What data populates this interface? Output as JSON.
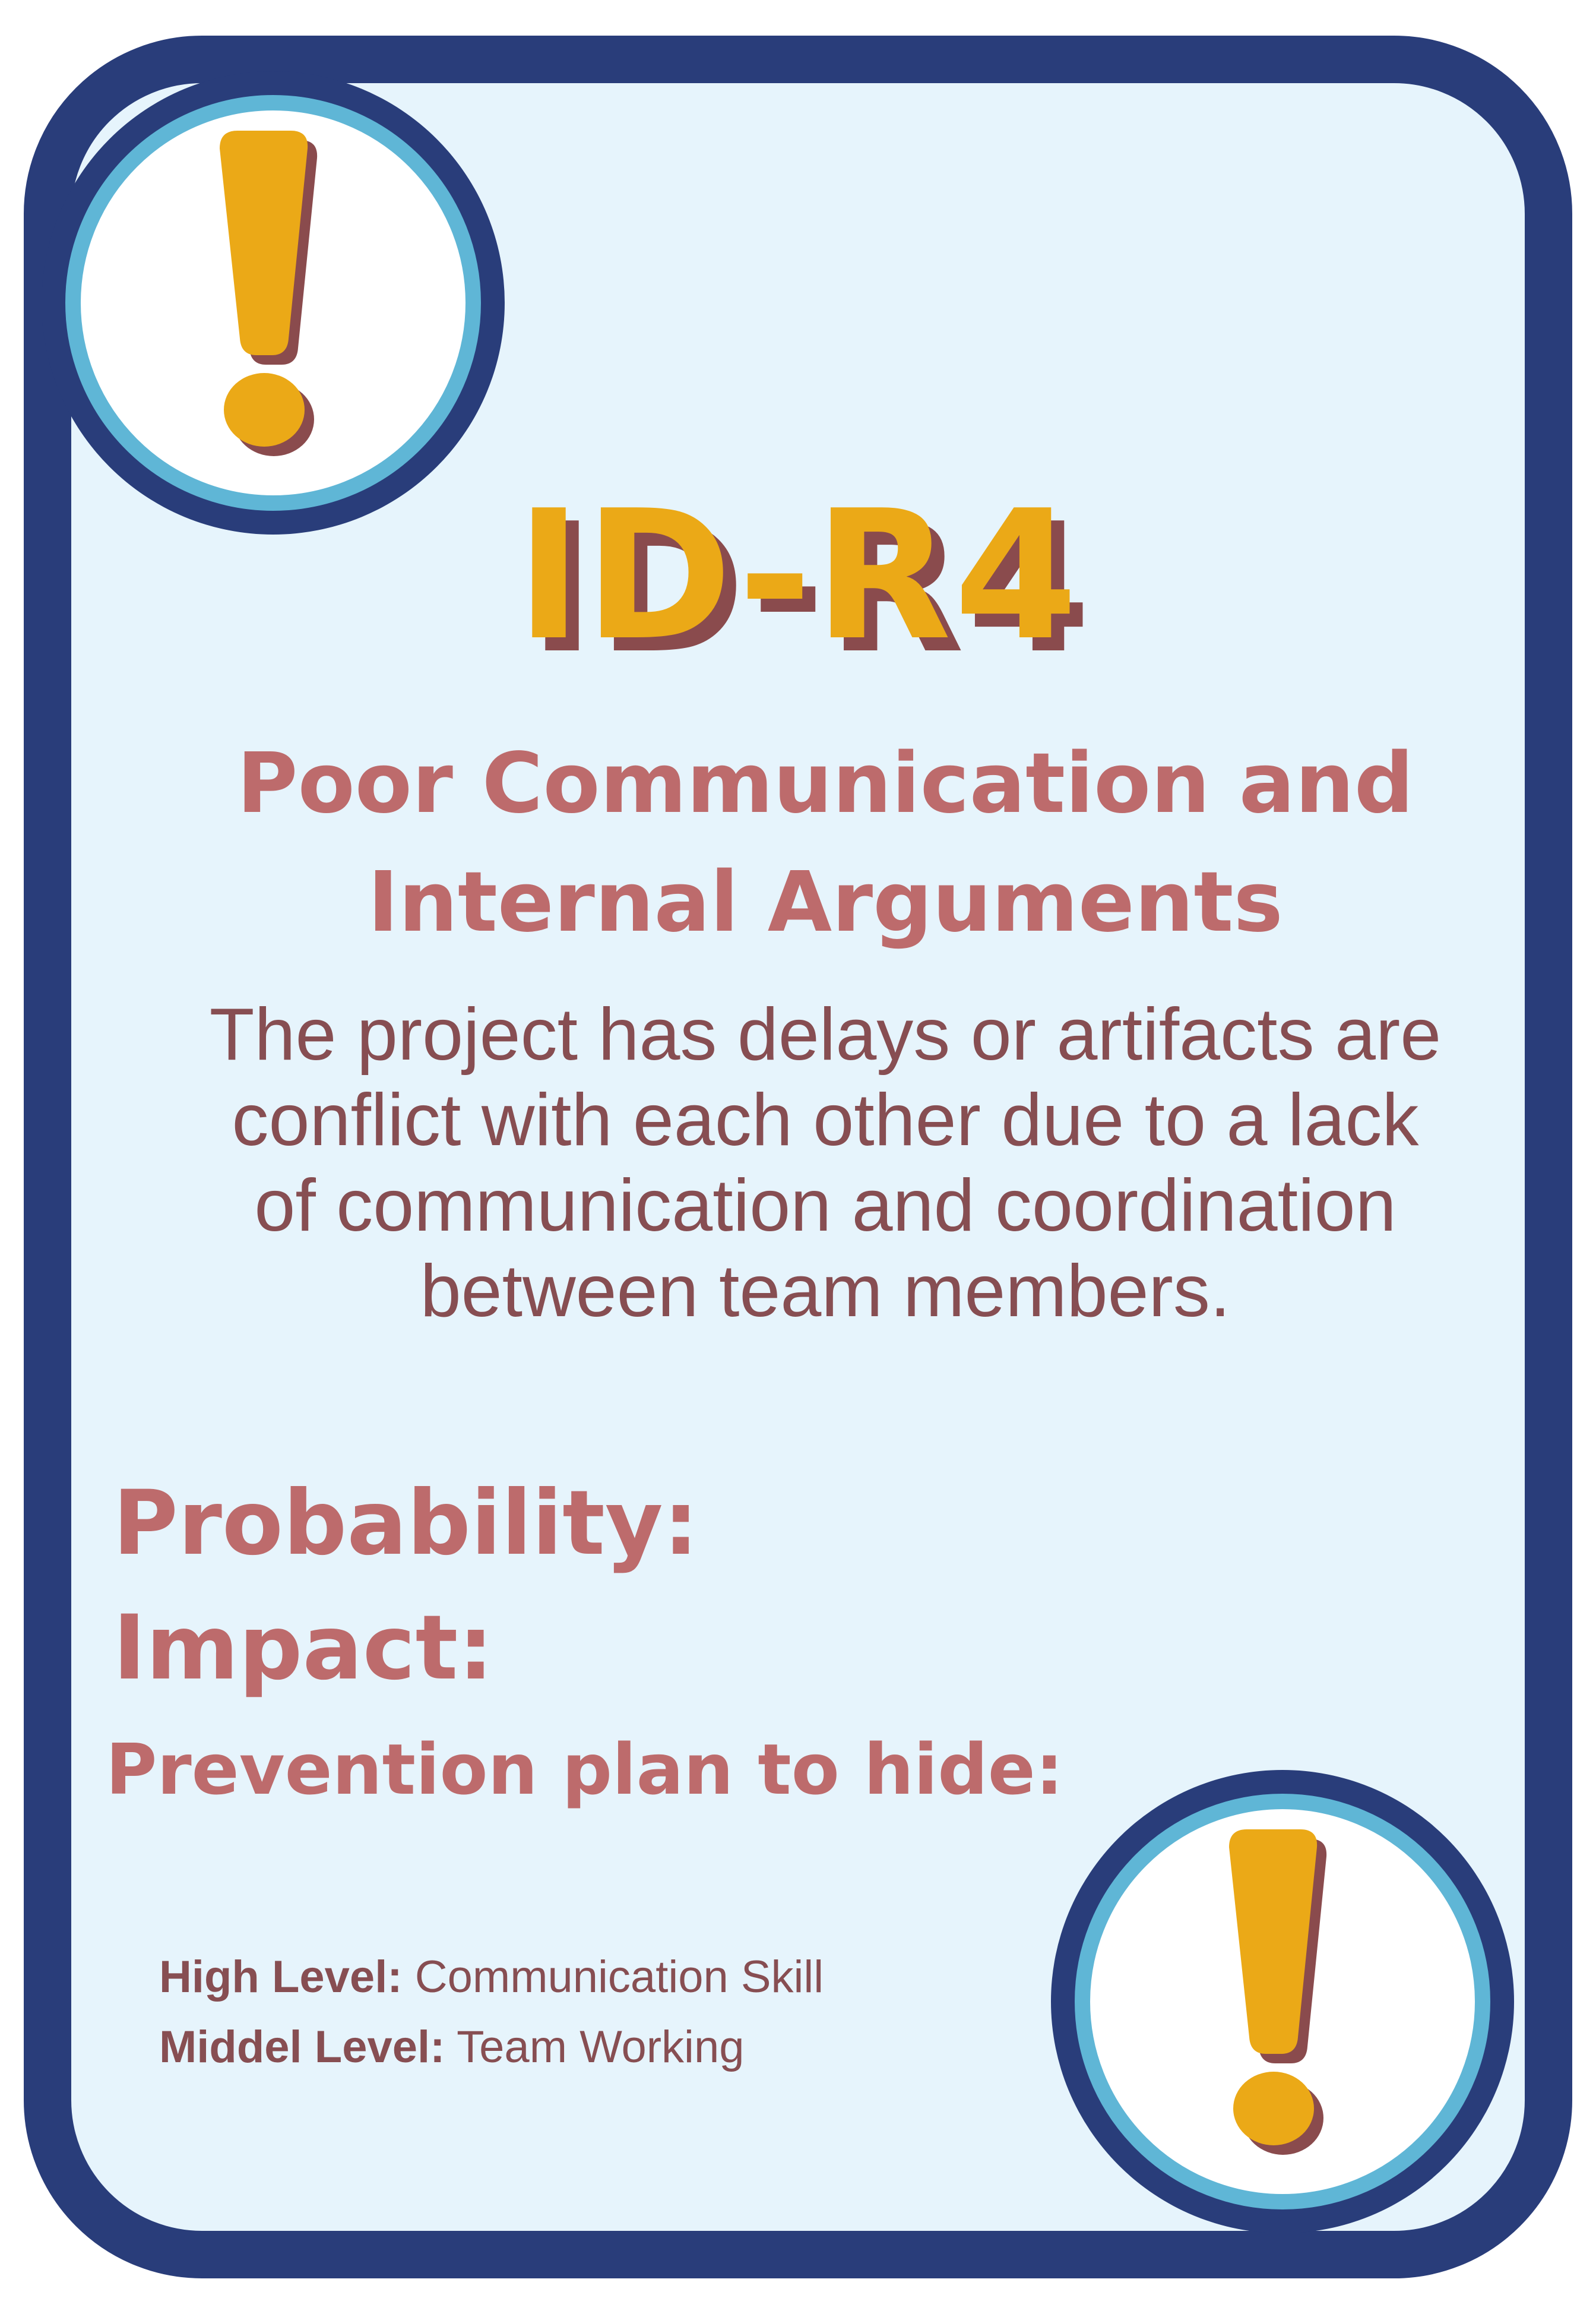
{
  "card": {
    "code": "ID-R4",
    "title_line1": "Poor Communication and",
    "title_line2": "Internal Arguments",
    "description": "The project has delays or artifacts are\nconflict with each other due to a lack\nof  communication and coordination\nbetween team members.",
    "probability_label": "Probability:",
    "impact_label": "Impact:",
    "prevention_label": "Prevention plan to hide:",
    "levels": [
      {
        "label": "High Level:",
        "value": " Communication Skill"
      },
      {
        "label": "Middel Level:",
        "value": " Team Working"
      }
    ]
  },
  "icons": {
    "top": "exclamation-icon",
    "bottom": "exclamation-icon"
  },
  "colors": {
    "border": "#293d7a",
    "ring": "#5fb6d6",
    "background": "#e6f4fc",
    "accent": "#eba917",
    "shadow": "#8a4b4d",
    "heading": "#bd6b6c",
    "text": "#874e52"
  }
}
